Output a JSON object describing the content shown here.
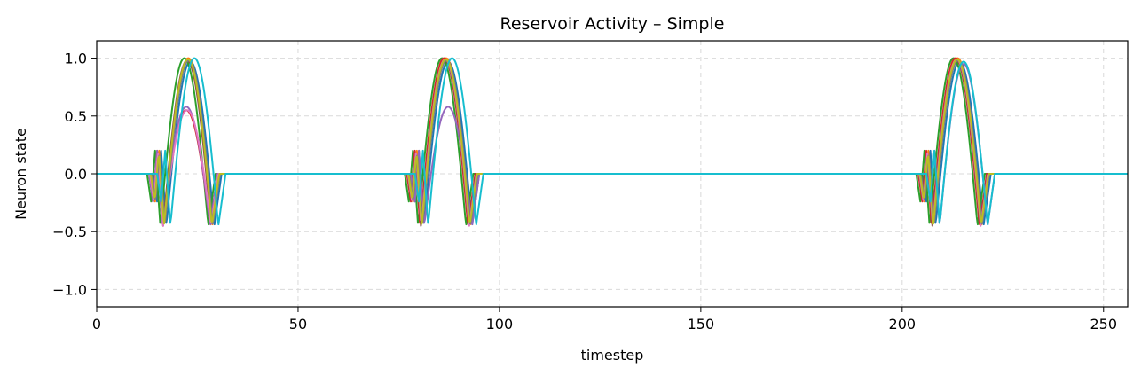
{
  "chart_data": {
    "type": "line",
    "title": "Reservoir Activity – Simple",
    "xlabel": "timestep",
    "ylabel": "Neuron state",
    "xlim": [
      0,
      256
    ],
    "ylim": [
      -1.15,
      1.15
    ],
    "xticks": [
      0,
      50,
      100,
      150,
      200,
      250
    ],
    "xtick_labels": [
      "0",
      "50",
      "100",
      "150",
      "200",
      "250"
    ],
    "yticks": [
      1.0,
      0.5,
      0.0,
      -0.5,
      -1.0
    ],
    "ytick_labels": [
      "1.0",
      "0.5",
      "0.0",
      "−0.5",
      "−1.0"
    ],
    "grid": true,
    "baseline": 0,
    "series": [
      {
        "color": "#1f77b4",
        "bursts": [
          [
            14,
            0.97
          ],
          [
            78,
            0.97
          ],
          [
            205,
            0.97
          ]
        ]
      },
      {
        "color": "#ff7f0e",
        "bursts": [
          [
            13.5,
            1.0
          ],
          [
            77.5,
            1.0
          ],
          [
            204.5,
            1.0
          ]
        ]
      },
      {
        "color": "#2ca02c",
        "bursts": [
          [
            12.5,
            1.0
          ],
          [
            76.5,
            1.0
          ],
          [
            203.5,
            1.0
          ]
        ]
      },
      {
        "color": "#d62728",
        "bursts": [
          [
            13,
            0.55
          ],
          [
            77,
            1.0
          ],
          [
            204,
            1.0
          ]
        ]
      },
      {
        "color": "#9467bd",
        "bursts": [
          [
            13,
            0.58
          ],
          [
            78,
            0.58
          ],
          [
            206,
            0.95
          ]
        ]
      },
      {
        "color": "#8c564b",
        "bursts": [
          [
            13.2,
            0.98
          ],
          [
            77.2,
            0.98
          ],
          [
            204.2,
            0.98
          ]
        ]
      },
      {
        "color": "#e377c2",
        "bursts": [
          [
            13.2,
            0.55
          ],
          [
            77.3,
            0.99
          ],
          [
            204.3,
            0.99
          ]
        ]
      },
      {
        "color": "#7f7f7f",
        "bursts": [
          [
            13.6,
            0.98
          ],
          [
            77.6,
            0.98
          ],
          [
            204.6,
            0.98
          ]
        ]
      },
      {
        "color": "#bcbd22",
        "bursts": [
          [
            13.4,
            0.99
          ],
          [
            77.4,
            0.99
          ],
          [
            204.4,
            0.99
          ]
        ]
      },
      {
        "color": "#17becf",
        "bursts": [
          [
            15,
            1.0
          ],
          [
            79,
            1.0
          ],
          [
            206,
            0.97
          ]
        ]
      }
    ]
  }
}
